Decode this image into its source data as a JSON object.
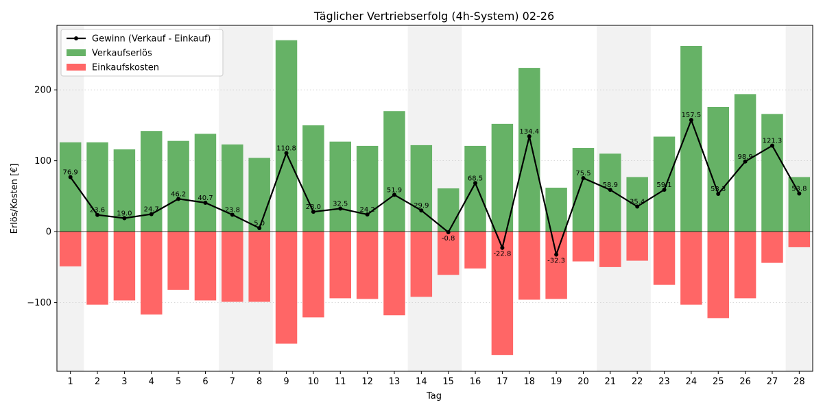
{
  "chart_data": {
    "type": "bar",
    "title": "Täglicher Vertriebserfolg (4h-System) 02-26",
    "xlabel": "Tag",
    "ylabel": "Erlös/Kosten [€]",
    "x": [
      1,
      2,
      3,
      4,
      5,
      6,
      7,
      8,
      9,
      10,
      11,
      12,
      13,
      14,
      15,
      16,
      17,
      18,
      19,
      20,
      21,
      22,
      23,
      24,
      25,
      26,
      27,
      28
    ],
    "ylim": [
      -197,
      291
    ],
    "yticks": [
      -100,
      0,
      100,
      200
    ],
    "grid": "horizontal-dotted",
    "legend_position": "top-left",
    "weekend_days": [
      1,
      7,
      8,
      14,
      15,
      21,
      22,
      28
    ],
    "series": [
      {
        "name": "Verkaufserlös",
        "kind": "bar",
        "color": "#66b266",
        "values": [
          126,
          126,
          116,
          142,
          128,
          138,
          123,
          104,
          270,
          150,
          127,
          121,
          170,
          122,
          61,
          121,
          152,
          231,
          62,
          118,
          110,
          77,
          134,
          262,
          176,
          194,
          166,
          77
        ]
      },
      {
        "name": "Einkaufskosten",
        "kind": "bar",
        "color": "#ff6666",
        "values": [
          -49,
          -103,
          -97,
          -117,
          -82,
          -97,
          -99,
          -99,
          -158,
          -121,
          -94,
          -95,
          -118,
          -92,
          -61,
          -52,
          -174,
          -96,
          -95,
          -42,
          -50,
          -41,
          -75,
          -103,
          -122,
          -94,
          -44,
          -22
        ]
      },
      {
        "name": "Gewinn (Verkauf - Einkauf)",
        "kind": "line",
        "color": "#000000",
        "values": [
          76.9,
          23.6,
          19.0,
          24.7,
          46.2,
          40.7,
          23.8,
          5.0,
          110.8,
          28.0,
          32.5,
          24.2,
          51.9,
          29.9,
          -0.8,
          68.5,
          -22.8,
          134.4,
          -32.3,
          75.5,
          58.9,
          35.4,
          59.1,
          157.5,
          53.3,
          98.9,
          121.3,
          53.8
        ],
        "labels": [
          "76.9",
          "23.6",
          "19.0",
          "24.7",
          "46.2",
          "40.7",
          "23.8",
          "5.0",
          "110.8",
          "28.0",
          "32.5",
          "24.2",
          "51.9",
          "29.9",
          "-0.8",
          "68.5",
          "-22.8",
          "134.4",
          "-32.3",
          "75.5",
          "58.9",
          "35.4",
          "59.1",
          "157.5",
          "53.3",
          "98.9",
          "121.3",
          "53.8"
        ]
      }
    ]
  }
}
